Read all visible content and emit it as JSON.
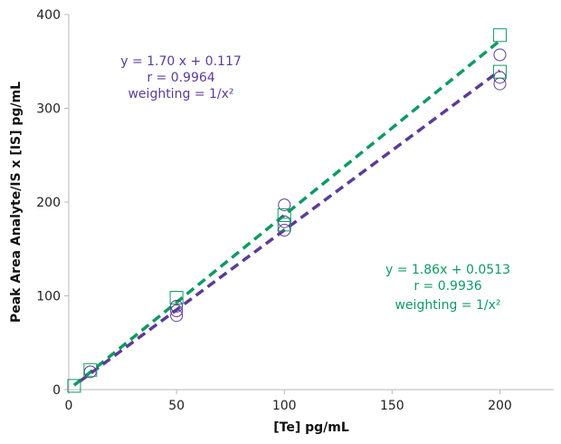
{
  "chart_data": {
    "type": "scatter",
    "title": "",
    "xlabel": "[Te] pg/mL",
    "ylabel": "Peak Area Analyte/IS x [IS] pg/mL",
    "xlim": [
      0,
      225
    ],
    "ylim": [
      0,
      400
    ],
    "xticks": [
      "0",
      "50",
      "100",
      "150",
      "200"
    ],
    "yticks": [
      "0",
      "100",
      "200",
      "300",
      "400"
    ],
    "grid": false,
    "series": [
      {
        "marker": "circle",
        "color": "#5b3c97",
        "points": [
          [
            10,
            19
          ],
          [
            50,
            89
          ],
          [
            50,
            84
          ],
          [
            50,
            79
          ],
          [
            100,
            197
          ],
          [
            100,
            179
          ],
          [
            100,
            170
          ],
          [
            200,
            357
          ],
          [
            200,
            333
          ],
          [
            200,
            326
          ]
        ],
        "fit": {
          "slope": 1.7,
          "intercept": 0.117,
          "x_range": [
            5,
            200
          ]
        },
        "annotation": [
          "y = 1.70 x + 0.117",
          "r = 0.9964",
          "weighting = 1/x²"
        ]
      },
      {
        "marker": "square",
        "color": "#0f9a62",
        "points": [
          [
            2.5,
            4
          ],
          [
            10,
            21
          ],
          [
            50,
            98
          ],
          [
            100,
            186
          ],
          [
            100,
            176
          ],
          [
            200,
            378
          ],
          [
            200,
            339
          ]
        ],
        "fit": {
          "slope": 1.86,
          "intercept": 0.0513,
          "x_range": [
            2.5,
            200
          ]
        },
        "annotation": [
          "y = 1.86x + 0.0513",
          "r = 0.9936",
          "weighting = 1/x²"
        ]
      }
    ]
  }
}
